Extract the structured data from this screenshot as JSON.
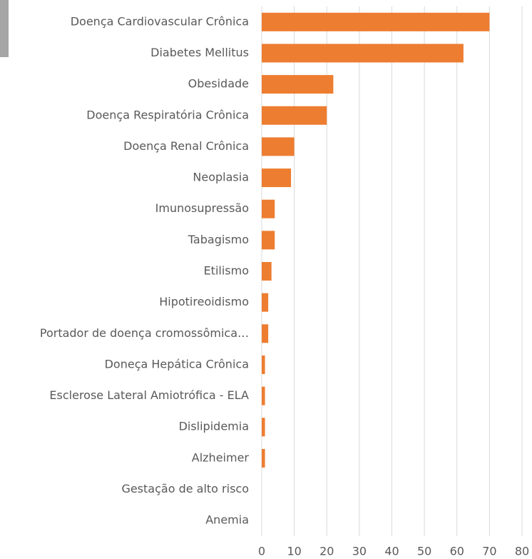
{
  "chart_data": {
    "type": "barh",
    "categories": [
      "Doença Cardiovascular Crônica",
      "Diabetes Mellitus",
      "Obesidade",
      "Doença Respiratória Crônica",
      "Doença Renal Crônica",
      "Neoplasia",
      "Imunosupressão",
      "Tabagismo",
      "Etilismo",
      "Hipotireoidismo",
      "Portador de doença cromossômica…",
      "Doneça Hepática Crônica",
      "Esclerose Lateral Amiotrófica - ELA",
      "Dislipidemia",
      "Alzheimer",
      "Gestação de alto risco",
      "Anemia"
    ],
    "values": [
      70,
      62,
      22,
      20,
      10,
      9,
      4,
      4,
      3,
      2,
      2,
      1,
      1,
      1,
      1,
      0,
      0
    ],
    "color": "#ed7d31",
    "xlim": [
      0,
      80
    ],
    "xticks": [
      0,
      10,
      20,
      30,
      40,
      50,
      60,
      70,
      80
    ],
    "grid": true
  }
}
